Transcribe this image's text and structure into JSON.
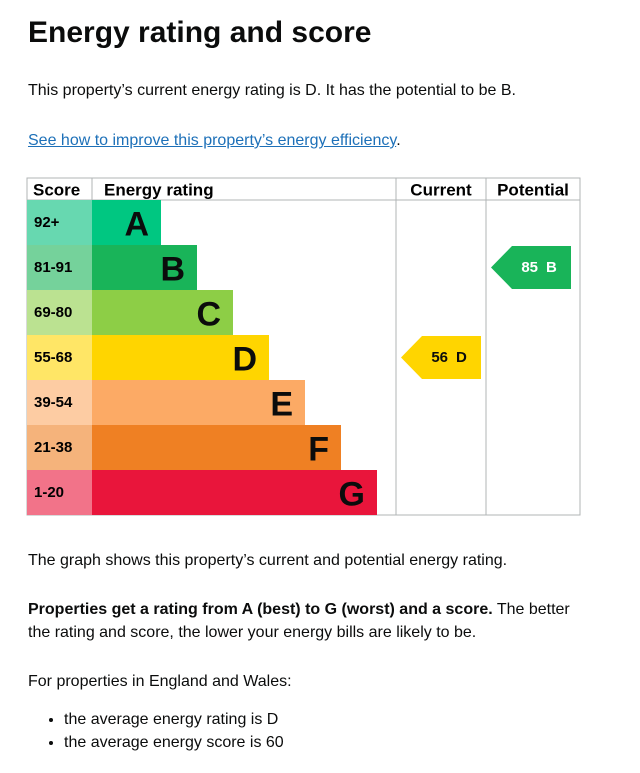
{
  "title": "Energy rating and score",
  "intro": "This property’s current energy rating is D. It has the potential to be B.",
  "link": {
    "text": "See how to improve this property’s energy efficiency",
    "suffix": "."
  },
  "table": {
    "headers": [
      "Score",
      "Energy rating",
      "Current",
      "Potential"
    ],
    "bands": [
      {
        "score": "92+",
        "letter": "A",
        "color": "#00c781",
        "score_color": "#67d8b0"
      },
      {
        "score": "81-91",
        "letter": "B",
        "color": "#19b459",
        "score_color": "#75d29b"
      },
      {
        "score": "69-80",
        "letter": "C",
        "color": "#8dce46",
        "score_color": "#bbe291"
      },
      {
        "score": "55-68",
        "letter": "D",
        "color": "#ffd500",
        "score_color": "#ffe666"
      },
      {
        "score": "39-54",
        "letter": "E",
        "color": "#fcaa65",
        "score_color": "#fdcca3"
      },
      {
        "score": "21-38",
        "letter": "F",
        "color": "#ef8023",
        "score_color": "#f5b37b"
      },
      {
        "score": "1-20",
        "letter": "G",
        "color": "#e9153b",
        "score_color": "#f27389"
      }
    ],
    "current": {
      "score": 56,
      "letter": "D"
    },
    "potential": {
      "score": 85,
      "letter": "B"
    }
  },
  "graph_note": "The graph shows this property’s current and potential energy rating.",
  "rating_note": {
    "bold": "Properties get a rating from A (best) to G (worst) and a score.",
    "rest": " The better the rating and score, the lower your energy bills are likely to be."
  },
  "region_intro": "For properties in England and Wales:",
  "averages": [
    "the average energy rating is D",
    "the average energy score is 60"
  ]
}
